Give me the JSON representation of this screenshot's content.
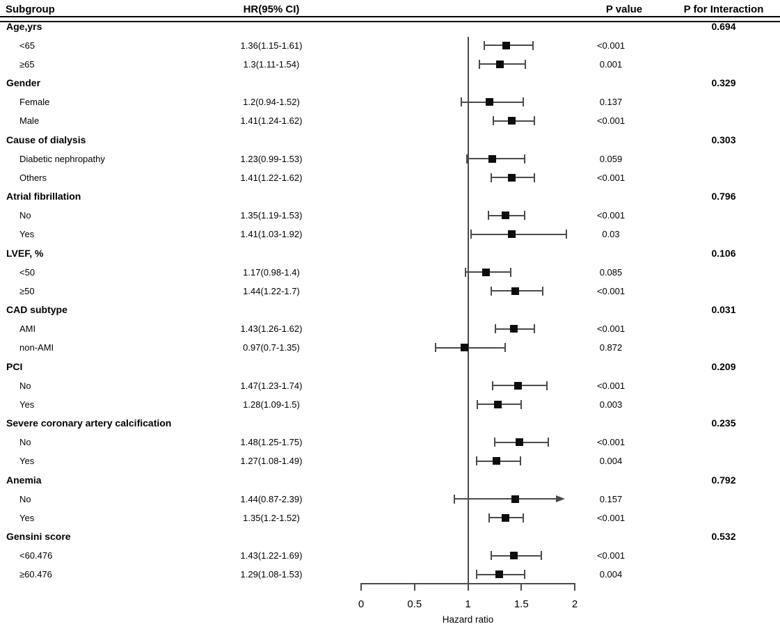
{
  "chart_data": {
    "type": "forest",
    "xlabel": "Hazard ratio",
    "x_range": [
      0,
      2
    ],
    "reference_line": 1,
    "grid": false,
    "x_ticks": [
      {
        "v": 0,
        "label": "0"
      },
      {
        "v": 0.5,
        "label": "0.5"
      },
      {
        "v": 1,
        "label": "1"
      },
      {
        "v": 1.5,
        "label": "1.5"
      },
      {
        "v": 2,
        "label": "2"
      }
    ],
    "columns": {
      "subgroup": "Subgroup",
      "hr_ci": "HR(95% CI)",
      "p_value": "P value",
      "p_interaction": "P for Interaction"
    },
    "rows": [
      {
        "type": "group",
        "label": "Age,yrs",
        "p_interaction": "0.694"
      },
      {
        "type": "item",
        "label": "<65",
        "hr_ci": "1.36(1.15-1.61)",
        "hr": 1.36,
        "lo": 1.15,
        "hi": 1.61,
        "p": "<0.001"
      },
      {
        "type": "item",
        "label": "≥65",
        "hr_ci": "1.3(1.11-1.54)",
        "hr": 1.3,
        "lo": 1.11,
        "hi": 1.54,
        "p": "0.001"
      },
      {
        "type": "group",
        "label": "Gender",
        "p_interaction": "0.329"
      },
      {
        "type": "item",
        "label": "Female",
        "hr_ci": "1.2(0.94-1.52)",
        "hr": 1.2,
        "lo": 0.94,
        "hi": 1.52,
        "p": "0.137"
      },
      {
        "type": "item",
        "label": "Male",
        "hr_ci": "1.41(1.24-1.62)",
        "hr": 1.41,
        "lo": 1.24,
        "hi": 1.62,
        "p": "<0.001"
      },
      {
        "type": "group",
        "label": "Cause of dialysis",
        "p_interaction": "0.303"
      },
      {
        "type": "item",
        "label": "Diabetic nephropathy",
        "hr_ci": "1.23(0.99-1.53)",
        "hr": 1.23,
        "lo": 0.99,
        "hi": 1.53,
        "p": "0.059"
      },
      {
        "type": "item",
        "label": "Others",
        "hr_ci": "1.41(1.22-1.62)",
        "hr": 1.41,
        "lo": 1.22,
        "hi": 1.62,
        "p": "<0.001"
      },
      {
        "type": "group",
        "label": "Atrial fibrillation",
        "p_interaction": "0.796"
      },
      {
        "type": "item",
        "label": "No",
        "hr_ci": "1.35(1.19-1.53)",
        "hr": 1.35,
        "lo": 1.19,
        "hi": 1.53,
        "p": "<0.001"
      },
      {
        "type": "item",
        "label": "Yes",
        "hr_ci": "1.41(1.03-1.92)",
        "hr": 1.41,
        "lo": 1.03,
        "hi": 1.92,
        "p": "0.03"
      },
      {
        "type": "group",
        "label": "LVEF, %",
        "p_interaction": "0.106"
      },
      {
        "type": "item",
        "label": "<50",
        "hr_ci": "1.17(0.98-1.4)",
        "hr": 1.17,
        "lo": 0.98,
        "hi": 1.4,
        "p": "0.085"
      },
      {
        "type": "item",
        "label": "≥50",
        "hr_ci": "1.44(1.22-1.7)",
        "hr": 1.44,
        "lo": 1.22,
        "hi": 1.7,
        "p": "<0.001"
      },
      {
        "type": "group",
        "label": "CAD subtype",
        "p_interaction": "0.031"
      },
      {
        "type": "item",
        "label": "AMI",
        "hr_ci": "1.43(1.26-1.62)",
        "hr": 1.43,
        "lo": 1.26,
        "hi": 1.62,
        "p": "<0.001"
      },
      {
        "type": "item",
        "label": "non-AMI",
        "hr_ci": "0.97(0.7-1.35)",
        "hr": 0.97,
        "lo": 0.7,
        "hi": 1.35,
        "p": "0.872"
      },
      {
        "type": "group",
        "label": "PCI",
        "p_interaction": "0.209"
      },
      {
        "type": "item",
        "label": "No",
        "hr_ci": "1.47(1.23-1.74)",
        "hr": 1.47,
        "lo": 1.23,
        "hi": 1.74,
        "p": "<0.001"
      },
      {
        "type": "item",
        "label": "Yes",
        "hr_ci": "1.28(1.09-1.5)",
        "hr": 1.28,
        "lo": 1.09,
        "hi": 1.5,
        "p": "0.003"
      },
      {
        "type": "group",
        "label": "Severe coronary artery calcification",
        "p_interaction": "0.235"
      },
      {
        "type": "item",
        "label": "No",
        "hr_ci": "1.48(1.25-1.75)",
        "hr": 1.48,
        "lo": 1.25,
        "hi": 1.75,
        "p": "<0.001"
      },
      {
        "type": "item",
        "label": "Yes",
        "hr_ci": "1.27(1.08-1.49)",
        "hr": 1.27,
        "lo": 1.08,
        "hi": 1.49,
        "p": "0.004"
      },
      {
        "type": "group",
        "label": "Anemia",
        "p_interaction": "0.792"
      },
      {
        "type": "item",
        "label": "No",
        "hr_ci": "1.44(0.87-2.39)",
        "hr": 1.44,
        "lo": 0.87,
        "hi": 2.39,
        "p": "0.157",
        "arrow": true
      },
      {
        "type": "item",
        "label": "Yes",
        "hr_ci": "1.35(1.2-1.52)",
        "hr": 1.35,
        "lo": 1.2,
        "hi": 1.52,
        "p": "<0.001"
      },
      {
        "type": "group",
        "label": "Gensini score",
        "p_interaction": "0.532"
      },
      {
        "type": "item",
        "label": "<60.476",
        "hr_ci": "1.43(1.22-1.69)",
        "hr": 1.43,
        "lo": 1.22,
        "hi": 1.69,
        "p": "<0.001"
      },
      {
        "type": "item",
        "label": "≥60.476",
        "hr_ci": "1.29(1.08-1.53)",
        "hr": 1.29,
        "lo": 1.08,
        "hi": 1.53,
        "p": "0.004"
      }
    ]
  },
  "colors": {
    "bar": "#4a4a4a",
    "marker": "#0d0d0d",
    "text": "#000000",
    "rule": "#000000"
  }
}
